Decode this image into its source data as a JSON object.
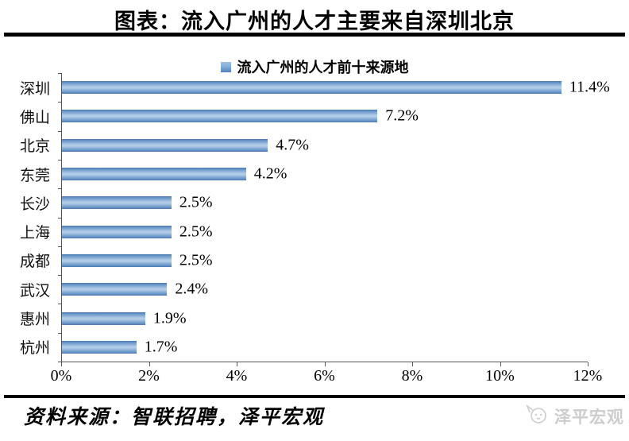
{
  "header": {
    "title": "图表：流入广州的人才主要来自深圳北京"
  },
  "chart_data": {
    "type": "bar",
    "orientation": "horizontal",
    "title": "",
    "legend": "流入广州的人才前十来源地",
    "legend_position": "top",
    "categories": [
      "深圳",
      "佛山",
      "北京",
      "东莞",
      "长沙",
      "上海",
      "成都",
      "武汉",
      "惠州",
      "杭州"
    ],
    "values": [
      11.4,
      7.2,
      4.7,
      4.2,
      2.5,
      2.5,
      2.5,
      2.4,
      1.9,
      1.7
    ],
    "value_labels": [
      "11.4%",
      "7.2%",
      "4.7%",
      "4.2%",
      "2.5%",
      "2.5%",
      "2.5%",
      "2.4%",
      "1.9%",
      "1.7%"
    ],
    "x_ticks": [
      "0%",
      "2%",
      "4%",
      "6%",
      "8%",
      "10%",
      "12%"
    ],
    "x_tick_values": [
      0,
      2,
      4,
      6,
      8,
      10,
      12
    ],
    "xlim": [
      0,
      12
    ],
    "grid": false,
    "bar_color": "#6f9ccd",
    "bar_gradient_edge": "#4a78b0",
    "bar_gradient_center": "#b7cfe9"
  },
  "footer": {
    "source": "资料来源：智联招聘，泽平宏观",
    "logo_text": "泽平宏观"
  }
}
